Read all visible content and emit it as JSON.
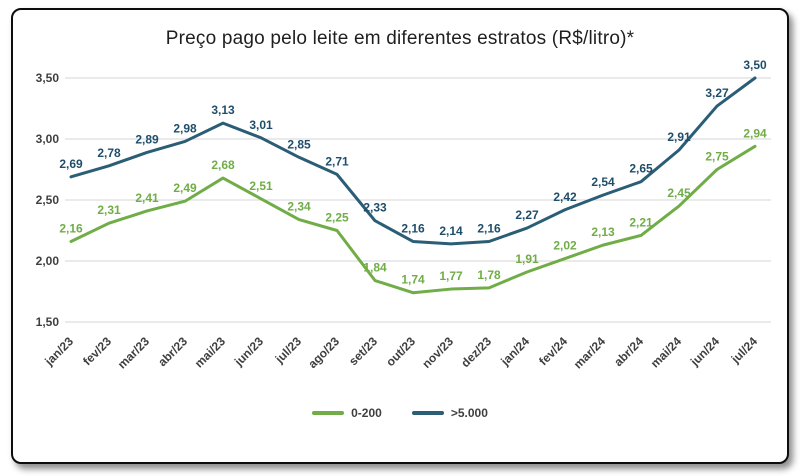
{
  "card": {
    "background": "#ffffff",
    "border_color": "#0d0d0d"
  },
  "chart_data": {
    "type": "line",
    "title": "Preço pago pelo leite em diferentes estratos (R$/litro)*",
    "categories": [
      "jan/23",
      "fev/23",
      "mar/23",
      "abr/23",
      "mai/23",
      "jun/23",
      "jul/23",
      "ago/23",
      "set/23",
      "out/23",
      "nov/23",
      "dez/23",
      "jan/24",
      "fev/24",
      "mar/24",
      "abr/24",
      "mai/24",
      "jun/24",
      "jul/24"
    ],
    "series": [
      {
        "name": "0-200",
        "color": "#70ad47",
        "label_color": "#70ad47",
        "values": [
          2.16,
          2.31,
          2.41,
          2.49,
          2.68,
          2.51,
          2.34,
          2.25,
          1.84,
          1.74,
          1.77,
          1.78,
          1.91,
          2.02,
          2.13,
          2.21,
          2.45,
          2.75,
          2.94
        ]
      },
      {
        "name": ">5.000",
        "color": "#2b5d77",
        "label_color": "#1f4e6b",
        "values": [
          2.69,
          2.78,
          2.89,
          2.98,
          3.13,
          3.01,
          2.85,
          2.71,
          2.33,
          2.16,
          2.14,
          2.16,
          2.27,
          2.42,
          2.54,
          2.65,
          2.91,
          3.27,
          3.5
        ]
      }
    ],
    "ylim": [
      1.5,
      3.5
    ],
    "yticks": [
      1.5,
      2.0,
      2.5,
      3.0,
      3.5
    ],
    "ytick_labels": [
      "1,50",
      "2,00",
      "2,50",
      "3,00",
      "3,50"
    ],
    "grid": true,
    "gridline_color": "#d6d6d6",
    "legend_position": "bottom",
    "decimal_separator": ","
  }
}
